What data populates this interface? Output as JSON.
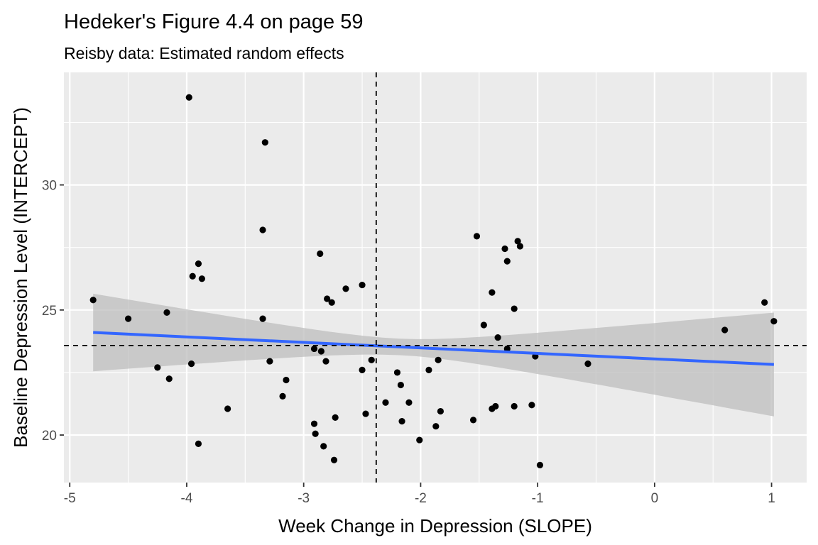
{
  "chart_data": {
    "type": "scatter",
    "title": "Hedeker's Figure 4.4 on page 59",
    "subtitle": "Reisby data: Estimated random effects",
    "xlabel": "Week Change in Depression (SLOPE)",
    "ylabel": "Baseline Depression Level (INTERCEPT)",
    "xlim": [
      -5.05,
      1.3
    ],
    "ylim": [
      18.1,
      34.5
    ],
    "x_ticks": [
      -5,
      -4,
      -3,
      -2,
      -1,
      0,
      1
    ],
    "y_ticks": [
      20,
      25,
      30
    ],
    "x_tick_labels": [
      "-5",
      "-4",
      "-3",
      "-2",
      "-1",
      "0",
      "1"
    ],
    "y_tick_labels": [
      "20",
      "25",
      "30"
    ],
    "grid": true,
    "reference_lines": {
      "vertical_x": -2.38,
      "horizontal_y": 23.58
    },
    "fit": {
      "x_range": [
        -4.8,
        1.02
      ],
      "intercept_at_x_min": 24.1,
      "intercept_at_x_max": 22.82,
      "band_at_x_min": [
        22.55,
        25.65
      ],
      "band_at_x_max": [
        20.75,
        24.9
      ]
    },
    "points": [
      {
        "x": -3.98,
        "y": 33.5
      },
      {
        "x": -3.33,
        "y": 31.7
      },
      {
        "x": -3.35,
        "y": 28.2
      },
      {
        "x": -2.86,
        "y": 27.25
      },
      {
        "x": -3.9,
        "y": 26.85
      },
      {
        "x": -3.95,
        "y": 26.35
      },
      {
        "x": -3.87,
        "y": 26.25
      },
      {
        "x": -2.5,
        "y": 26.0
      },
      {
        "x": -2.64,
        "y": 25.85
      },
      {
        "x": -2.8,
        "y": 25.45
      },
      {
        "x": -2.76,
        "y": 25.3
      },
      {
        "x": -4.8,
        "y": 25.4
      },
      {
        "x": -4.17,
        "y": 24.9
      },
      {
        "x": -4.5,
        "y": 24.65
      },
      {
        "x": -3.35,
        "y": 24.65
      },
      {
        "x": -3.29,
        "y": 22.95
      },
      {
        "x": -3.96,
        "y": 22.85
      },
      {
        "x": -4.25,
        "y": 22.7
      },
      {
        "x": -4.15,
        "y": 22.25
      },
      {
        "x": -3.15,
        "y": 22.2
      },
      {
        "x": -3.18,
        "y": 21.55
      },
      {
        "x": -3.65,
        "y": 21.05
      },
      {
        "x": -3.9,
        "y": 19.65
      },
      {
        "x": -2.91,
        "y": 23.45
      },
      {
        "x": -2.85,
        "y": 23.35
      },
      {
        "x": -2.81,
        "y": 22.95
      },
      {
        "x": -2.42,
        "y": 23.0
      },
      {
        "x": -2.5,
        "y": 22.6
      },
      {
        "x": -2.73,
        "y": 20.7
      },
      {
        "x": -2.47,
        "y": 20.85
      },
      {
        "x": -2.91,
        "y": 20.45
      },
      {
        "x": -2.9,
        "y": 20.05
      },
      {
        "x": -2.83,
        "y": 19.55
      },
      {
        "x": -2.74,
        "y": 19.0
      },
      {
        "x": -2.3,
        "y": 21.3
      },
      {
        "x": -2.2,
        "y": 22.5
      },
      {
        "x": -2.17,
        "y": 22.0
      },
      {
        "x": -2.1,
        "y": 21.3
      },
      {
        "x": -2.16,
        "y": 20.55
      },
      {
        "x": -2.01,
        "y": 19.8
      },
      {
        "x": -1.93,
        "y": 22.6
      },
      {
        "x": -1.85,
        "y": 23.0
      },
      {
        "x": -1.83,
        "y": 20.95
      },
      {
        "x": -1.87,
        "y": 20.35
      },
      {
        "x": -1.55,
        "y": 20.6
      },
      {
        "x": -1.52,
        "y": 27.95
      },
      {
        "x": -1.28,
        "y": 27.45
      },
      {
        "x": -1.17,
        "y": 27.75
      },
      {
        "x": -1.15,
        "y": 27.55
      },
      {
        "x": -1.26,
        "y": 26.95
      },
      {
        "x": -1.39,
        "y": 25.7
      },
      {
        "x": -1.2,
        "y": 25.05
      },
      {
        "x": -1.46,
        "y": 24.4
      },
      {
        "x": -1.34,
        "y": 23.9
      },
      {
        "x": -1.26,
        "y": 23.45
      },
      {
        "x": -1.39,
        "y": 21.05
      },
      {
        "x": -1.36,
        "y": 21.15
      },
      {
        "x": -1.2,
        "y": 21.15
      },
      {
        "x": -1.05,
        "y": 21.2
      },
      {
        "x": -1.02,
        "y": 23.15
      },
      {
        "x": -0.98,
        "y": 18.8
      },
      {
        "x": -0.57,
        "y": 22.85
      },
      {
        "x": 0.6,
        "y": 24.2
      },
      {
        "x": 0.94,
        "y": 25.3
      },
      {
        "x": 1.02,
        "y": 24.55
      }
    ],
    "colors": {
      "panel": "#ebebeb",
      "grid": "#ffffff",
      "point": "#000000",
      "fit_line": "#3366ff",
      "band": "#bebebe",
      "tick_label": "#4d4d4d"
    }
  }
}
